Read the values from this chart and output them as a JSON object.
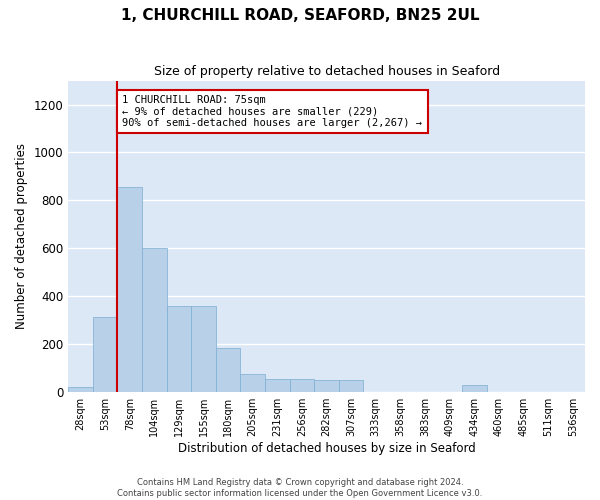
{
  "title_line1": "1, CHURCHILL ROAD, SEAFORD, BN25 2UL",
  "title_line2": "Size of property relative to detached houses in Seaford",
  "xlabel": "Distribution of detached houses by size in Seaford",
  "ylabel": "Number of detached properties",
  "categories": [
    "28sqm",
    "53sqm",
    "78sqm",
    "104sqm",
    "129sqm",
    "155sqm",
    "180sqm",
    "205sqm",
    "231sqm",
    "256sqm",
    "282sqm",
    "307sqm",
    "333sqm",
    "358sqm",
    "383sqm",
    "409sqm",
    "434sqm",
    "460sqm",
    "485sqm",
    "511sqm",
    "536sqm"
  ],
  "values": [
    20,
    315,
    855,
    600,
    360,
    360,
    185,
    75,
    55,
    55,
    50,
    50,
    0,
    0,
    0,
    0,
    30,
    0,
    0,
    0,
    0
  ],
  "bar_color": "#b8d0e8",
  "bar_edge_color": "#7aaed4",
  "annotation_line_color": "#cc0000",
  "annotation_box_text": "1 CHURCHILL ROAD: 75sqm\n← 9% of detached houses are smaller (229)\n90% of semi-detached houses are larger (2,267) →",
  "annotation_box_color": "#cc0000",
  "ylim": [
    0,
    1300
  ],
  "yticks": [
    0,
    200,
    400,
    600,
    800,
    1000,
    1200
  ],
  "background_color": "#dce8f5",
  "grid_color": "#ffffff",
  "fig_background": "#ffffff",
  "footer_line1": "Contains HM Land Registry data © Crown copyright and database right 2024.",
  "footer_line2": "Contains public sector information licensed under the Open Government Licence v3.0."
}
